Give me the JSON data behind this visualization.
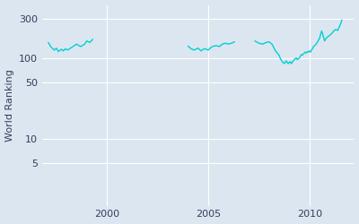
{
  "ylabel": "World Ranking",
  "xlabel": "",
  "background_color": "#dce6f1",
  "line_color": "#00d0d0",
  "line_width": 1.0,
  "yticks": [
    5,
    10,
    50,
    100,
    300
  ],
  "xticks": [
    2000,
    2005,
    2010
  ],
  "xlim": [
    1996.8,
    2012.2
  ],
  "ylim": [
    1.5,
    450
  ],
  "segments": [
    {
      "dates": [
        1997.1,
        1997.25,
        1997.4,
        1997.5,
        1997.6,
        1997.75,
        1997.85,
        1997.95,
        1998.05,
        1998.2,
        1998.5,
        1998.7,
        1998.9,
        1999.0,
        1999.15,
        1999.3
      ],
      "values": [
        155,
        135,
        125,
        132,
        120,
        128,
        122,
        130,
        125,
        132,
        148,
        138,
        148,
        162,
        155,
        170
      ]
    },
    {
      "dates": [
        2004.0,
        2004.15,
        2004.3,
        2004.5,
        2004.65,
        2004.8,
        2004.9,
        2005.0,
        2005.1,
        2005.2,
        2005.4,
        2005.55,
        2005.7,
        2005.85,
        2006.0,
        2006.15,
        2006.3
      ],
      "values": [
        140,
        130,
        125,
        132,
        122,
        130,
        128,
        125,
        132,
        138,
        142,
        138,
        148,
        152,
        148,
        152,
        158
      ]
    },
    {
      "dates": [
        2007.3,
        2007.5,
        2007.7,
        2007.85,
        2008.0,
        2008.15,
        2008.3,
        2008.4,
        2008.5,
        2008.55,
        2008.6,
        2008.65,
        2008.7,
        2008.75,
        2008.8,
        2008.85,
        2008.9,
        2008.95,
        2009.0,
        2009.05,
        2009.1,
        2009.15,
        2009.2,
        2009.3,
        2009.35,
        2009.4,
        2009.5,
        2009.55,
        2009.6,
        2009.65,
        2009.7,
        2009.8,
        2009.85,
        2009.9,
        2009.95,
        2010.0,
        2010.05,
        2010.1,
        2010.15,
        2010.2,
        2010.3,
        2010.4,
        2010.5,
        2010.55,
        2010.6,
        2010.65,
        2010.7,
        2010.75,
        2010.8,
        2010.9,
        2011.0,
        2011.1,
        2011.2,
        2011.3,
        2011.4,
        2011.45,
        2011.5,
        2011.55,
        2011.6
      ],
      "values": [
        162,
        152,
        148,
        155,
        158,
        148,
        125,
        115,
        108,
        100,
        95,
        90,
        88,
        85,
        88,
        92,
        88,
        85,
        88,
        90,
        85,
        88,
        92,
        98,
        100,
        95,
        100,
        105,
        110,
        108,
        112,
        118,
        115,
        120,
        118,
        122,
        118,
        125,
        130,
        138,
        145,
        158,
        175,
        195,
        215,
        198,
        178,
        162,
        172,
        182,
        190,
        200,
        215,
        225,
        218,
        235,
        250,
        268,
        295
      ]
    }
  ]
}
